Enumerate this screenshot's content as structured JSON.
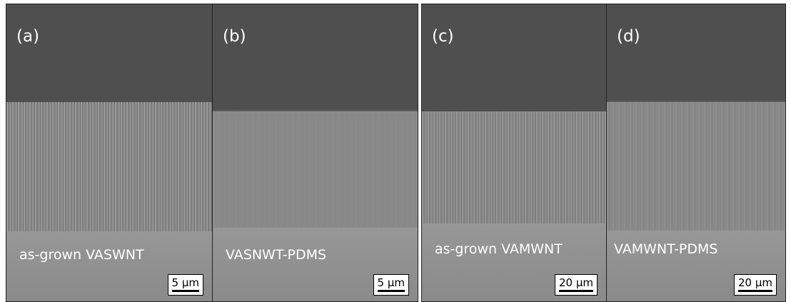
{
  "panels": [
    {
      "label": "(a)",
      "caption": "as-grown VASWNT",
      "scale_bar": "5 μm"
    },
    {
      "label": "(b)",
      "caption": "VASNWT-PDMS",
      "scale_bar": "5 μm"
    },
    {
      "label": "(c)",
      "caption": "as-grown VAMWNT",
      "scale_bar": "20 μm"
    },
    {
      "label": "(d)",
      "caption": "VAMWNT-PDMS",
      "scale_bar": "20 μm"
    }
  ]
}
